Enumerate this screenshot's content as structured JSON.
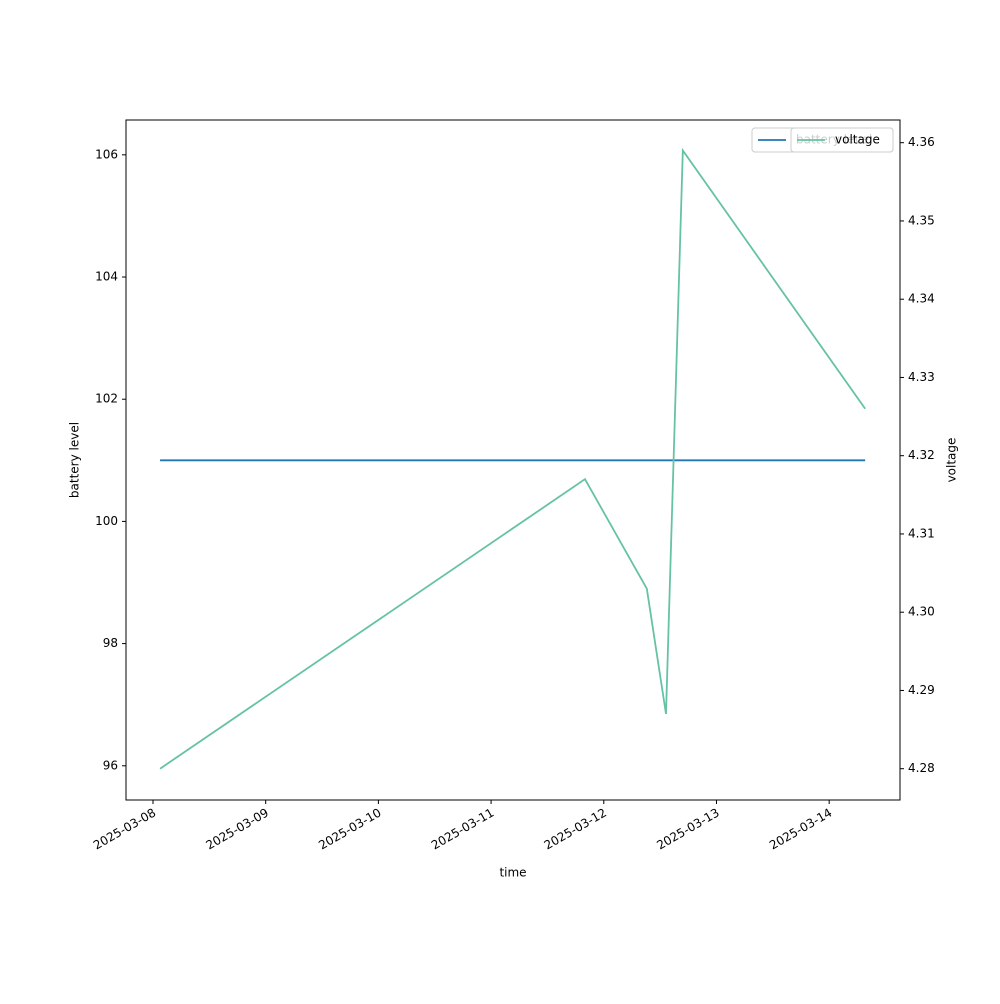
{
  "chart_data": {
    "type": "line",
    "x": [
      "2025-03-08 01:30",
      "2025-03-11 20:00",
      "2025-03-12 09:10",
      "2025-03-12 13:15",
      "2025-03-12 16:50",
      "2025-03-14 07:40"
    ],
    "series": [
      {
        "name": "battery level",
        "color": "#1f77b4",
        "values": [
          101,
          101,
          101,
          101,
          101,
          101
        ]
      },
      {
        "name": "voltage",
        "color": "#66c2a5",
        "axis": "y2",
        "values": [
          4.28,
          4.317,
          4.303,
          4.287,
          4.359,
          4.326
        ]
      }
    ],
    "xlabel": "time",
    "ylabel": "battery level",
    "y2label": "voltage",
    "xlim": [
      "2025-03-07 18:15",
      "2025-03-14 15:05"
    ],
    "xticks": [
      "2025-03-08",
      "2025-03-09",
      "2025-03-10",
      "2025-03-11",
      "2025-03-12",
      "2025-03-13",
      "2025-03-14"
    ],
    "ylim": [
      95.44,
      106.57
    ],
    "yticks": [
      96,
      98,
      100,
      102,
      104,
      106
    ],
    "y2lim": [
      4.276,
      4.3629
    ],
    "y2ticks": [
      4.28,
      4.29,
      {
        "value": 4.3,
        "label": "4.30"
      },
      4.31,
      4.32,
      4.33,
      4.34,
      4.35,
      4.36
    ],
    "legend": "upper right"
  }
}
